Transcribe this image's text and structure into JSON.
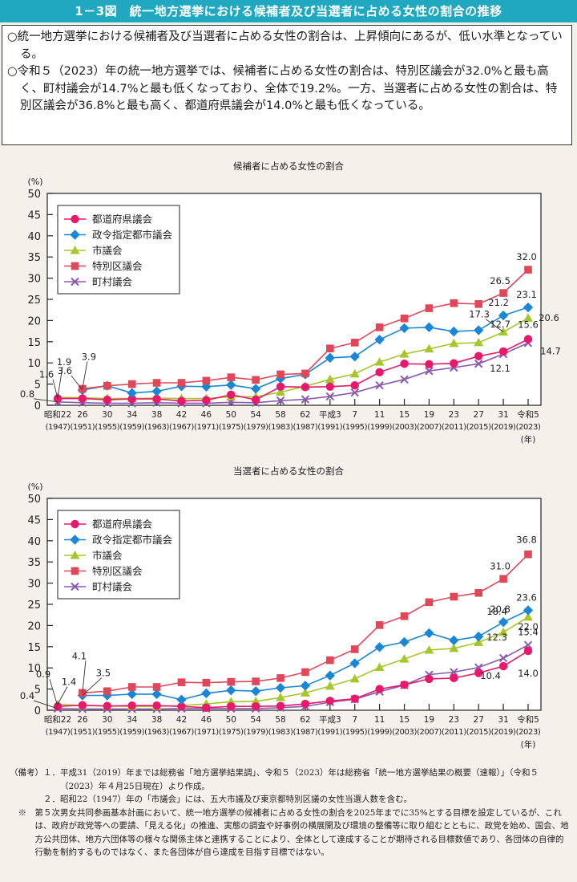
{
  "header": {
    "title": "1－3図　統一地方選挙における候補者及び当選者に占める女性の割合の推移"
  },
  "summary": [
    "○統一地方選挙における候補者及び当選者に占める女性の割合は、上昇傾向にあるが、低い水準となっている。",
    "○令和５（2023）年の統一地方選挙では、候補者に占める女性の割合は、特別区議会が32.0%と最も高く、町村議会が14.7%と最も低くなっており、全体で19.2%。一方、当選者に占める女性の割合は、特別区議会が36.8%と最も高く、都道府県議会が14.0%と最も低くなっている。"
  ],
  "colors": {
    "title_bar": "#1fa8bf",
    "background": "#f4f1ea",
    "prefectural": "#e8196b",
    "designated_city": "#1a87d6",
    "city": "#a6c72b",
    "special_ward": "#e0485a",
    "town_village": "#8a5bb0"
  },
  "chart_data": [
    {
      "type": "line",
      "title": "候補者に占める女性の割合",
      "ylabel": "(%)",
      "xlabel": "(年)",
      "ylim": [
        0,
        50
      ],
      "yticks": [
        0,
        5,
        10,
        15,
        20,
        25,
        30,
        35,
        40,
        45,
        50
      ],
      "grid": false,
      "legend_position": "top-left",
      "categories": [
        "昭和22",
        "26",
        "30",
        "34",
        "38",
        "42",
        "46",
        "50",
        "54",
        "58",
        "62",
        "平成3",
        "7",
        "11",
        "15",
        "19",
        "23",
        "27",
        "31",
        "令和5"
      ],
      "categories_sub": [
        "(1947)",
        "(1951)",
        "(1955)",
        "(1959)",
        "(1963)",
        "(1967)",
        "(1971)",
        "(1975)",
        "(1979)",
        "(1983)",
        "(1987)",
        "(1991)",
        "(1995)",
        "(1999)",
        "(2003)",
        "(2007)",
        "(2011)",
        "(2015)",
        "(2019)",
        "(2023)"
      ],
      "series": [
        {
          "name": "都道府県議会",
          "key": "prefectural",
          "marker": "circle",
          "values": [
            1.6,
            1.6,
            1.3,
            1.5,
            1.5,
            1.0,
            1.2,
            2.5,
            1.3,
            4.4,
            4.3,
            4.4,
            4.7,
            7.8,
            9.8,
            9.7,
            9.9,
            11.6,
            12.7,
            15.6
          ]
        },
        {
          "name": "政令指定都市議会",
          "key": "designated_city",
          "marker": "diamond",
          "values": [
            null,
            3.6,
            4.6,
            2.9,
            3.3,
            4.5,
            4.4,
            4.8,
            3.9,
            6.3,
            7.3,
            11.2,
            11.5,
            15.5,
            18.2,
            18.4,
            17.4,
            17.7,
            21.2,
            23.1
          ]
        },
        {
          "name": "市議会",
          "key": "city",
          "marker": "triangle",
          "values": [
            1.9,
            1.8,
            1.6,
            1.6,
            1.7,
            1.6,
            1.6,
            2.0,
            2.0,
            3.1,
            4.5,
            6.1,
            7.4,
            10.2,
            12.1,
            13.3,
            14.6,
            14.8,
            17.3,
            20.6
          ]
        },
        {
          "name": "特別区議会",
          "key": "special_ward",
          "marker": "square",
          "values": [
            null,
            3.9,
            4.6,
            5.0,
            5.3,
            5.3,
            5.8,
            6.6,
            6.0,
            7.3,
            7.5,
            13.4,
            14.8,
            18.4,
            20.5,
            22.9,
            24.1,
            23.9,
            26.5,
            32.0
          ]
        },
        {
          "name": "町村議会",
          "key": "town_village",
          "marker": "cross",
          "values": [
            0.8,
            0.6,
            0.5,
            0.5,
            0.6,
            0.5,
            0.5,
            0.7,
            0.6,
            1.1,
            1.4,
            2.1,
            3.0,
            4.7,
            6.1,
            8.1,
            8.9,
            9.8,
            12.1,
            14.7
          ]
        }
      ],
      "annotations": [
        {
          "text": "1.6",
          "series": "prefectural",
          "index": 0
        },
        {
          "text": "1.9",
          "series": "city",
          "index": 0
        },
        {
          "text": "0.8",
          "series": "town_village",
          "index": 0
        },
        {
          "text": "3.6",
          "series": "designated_city",
          "index": 1
        },
        {
          "text": "3.9",
          "series": "special_ward",
          "index": 1
        },
        {
          "text": "32.0",
          "series": "special_ward",
          "index": 19
        },
        {
          "text": "26.5",
          "series": "special_ward",
          "index": 18
        },
        {
          "text": "23.1",
          "series": "designated_city",
          "index": 19
        },
        {
          "text": "21.2",
          "series": "designated_city",
          "index": 18
        },
        {
          "text": "20.6",
          "series": "city",
          "index": 19
        },
        {
          "text": "17.3",
          "series": "city",
          "index": 18
        },
        {
          "text": "15.6",
          "series": "prefectural",
          "index": 19
        },
        {
          "text": "12.7",
          "series": "prefectural",
          "index": 18
        },
        {
          "text": "14.7",
          "series": "town_village",
          "index": 19
        },
        {
          "text": "12.1",
          "series": "town_village",
          "index": 18
        }
      ]
    },
    {
      "type": "line",
      "title": "当選者に占める女性の割合",
      "ylabel": "(%)",
      "xlabel": "(年)",
      "ylim": [
        0,
        50
      ],
      "yticks": [
        0,
        5,
        10,
        15,
        20,
        25,
        30,
        35,
        40,
        45,
        50
      ],
      "grid": false,
      "legend_position": "top-left",
      "categories": [
        "昭和22",
        "26",
        "30",
        "34",
        "38",
        "42",
        "46",
        "50",
        "54",
        "58",
        "62",
        "平成3",
        "7",
        "11",
        "15",
        "19",
        "23",
        "27",
        "31",
        "令和5"
      ],
      "categories_sub": [
        "(1947)",
        "(1951)",
        "(1955)",
        "(1959)",
        "(1963)",
        "(1967)",
        "(1971)",
        "(1975)",
        "(1979)",
        "(1983)",
        "(1987)",
        "(1991)",
        "(1995)",
        "(1999)",
        "(2003)",
        "(2007)",
        "(2011)",
        "(2015)",
        "(2019)",
        "(2023)"
      ],
      "series": [
        {
          "name": "都道府県議会",
          "key": "prefectural",
          "marker": "circle",
          "values": [
            0.9,
            1.2,
            1.0,
            1.1,
            1.1,
            0.9,
            0.6,
            0.9,
            0.9,
            1.0,
            1.5,
            2.2,
            2.7,
            5.0,
            6.0,
            7.4,
            7.6,
            8.8,
            10.4,
            14.0
          ]
        },
        {
          "name": "政令指定都市議会",
          "key": "designated_city",
          "marker": "diamond",
          "values": [
            null,
            3.5,
            3.5,
            3.8,
            3.8,
            2.5,
            4.0,
            4.7,
            4.5,
            5.3,
            5.8,
            8.2,
            11.1,
            14.9,
            16.1,
            18.2,
            16.5,
            17.4,
            20.8,
            23.6
          ]
        },
        {
          "name": "市議会",
          "key": "city",
          "marker": "triangle",
          "values": [
            1.4,
            1.1,
            1.0,
            0.9,
            0.9,
            1.1,
            1.5,
            2.0,
            2.1,
            3.0,
            4.1,
            5.7,
            7.4,
            10.1,
            12.1,
            14.2,
            14.6,
            16.0,
            18.4,
            22.0
          ]
        },
        {
          "name": "特別区議会",
          "key": "special_ward",
          "marker": "square",
          "values": [
            null,
            4.1,
            4.5,
            5.5,
            5.5,
            6.6,
            6.5,
            6.7,
            6.8,
            7.6,
            9.0,
            11.8,
            14.4,
            20.1,
            22.2,
            25.5,
            26.8,
            27.7,
            31.0,
            36.8
          ]
        },
        {
          "name": "町村議会",
          "key": "town_village",
          "marker": "cross",
          "values": [
            0.4,
            0.3,
            0.3,
            0.3,
            0.3,
            0.4,
            0.4,
            0.4,
            0.4,
            0.6,
            0.9,
            1.9,
            2.6,
            4.4,
            5.9,
            8.4,
            9.0,
            10.1,
            12.3,
            15.4
          ]
        }
      ],
      "annotations": [
        {
          "text": "0.9",
          "series": "prefectural",
          "index": 0
        },
        {
          "text": "1.4",
          "series": "city",
          "index": 0
        },
        {
          "text": "0.4",
          "series": "town_village",
          "index": 0
        },
        {
          "text": "4.1",
          "series": "special_ward",
          "index": 1
        },
        {
          "text": "3.5",
          "series": "designated_city",
          "index": 1
        },
        {
          "text": "36.8",
          "series": "special_ward",
          "index": 19
        },
        {
          "text": "31.0",
          "series": "special_ward",
          "index": 18
        },
        {
          "text": "23.6",
          "series": "designated_city",
          "index": 19
        },
        {
          "text": "20.8",
          "series": "designated_city",
          "index": 18
        },
        {
          "text": "22.0",
          "series": "city",
          "index": 19
        },
        {
          "text": "18.4",
          "series": "city",
          "index": 18
        },
        {
          "text": "15.4",
          "series": "town_village",
          "index": 19
        },
        {
          "text": "12.3",
          "series": "town_village",
          "index": 18
        },
        {
          "text": "14.0",
          "series": "prefectural",
          "index": 19
        },
        {
          "text": "10.4",
          "series": "prefectural",
          "index": 18
        }
      ]
    }
  ],
  "notes": {
    "lead1": "（備考）１．",
    "note1": "平成31（2019）年までは総務省「地方選挙結果調」、令和５（2023）年は総務省「統一地方選挙結果の概要（速報）」（令和５（2023）年４月25日現在）より作成。",
    "lead2": "　　　　２．",
    "note2": "昭和22（1947）年の「市議会」には、五大市議及び東京都特別区議の女性当選人数を含む。",
    "lead3": "　※　",
    "note3": "第５次男女共同参画基本計画において、統一地方選挙の候補者に占める女性の割合を2025年までに35%とする目標を設定しているが、これは、政府が政党等への要請、「見える化」の推進、実態の調査や好事例の横展開及び環境の整備等に取り組むとともに、政党を始め、国会、地方公共団体、地方六団体等の様々な関係主体と連携することにより、全体として達成することが期待される目標数値であり、各団体の自律的行動を制約するものではなく、また各団体が自ら達成を目指す目標ではない。"
  }
}
